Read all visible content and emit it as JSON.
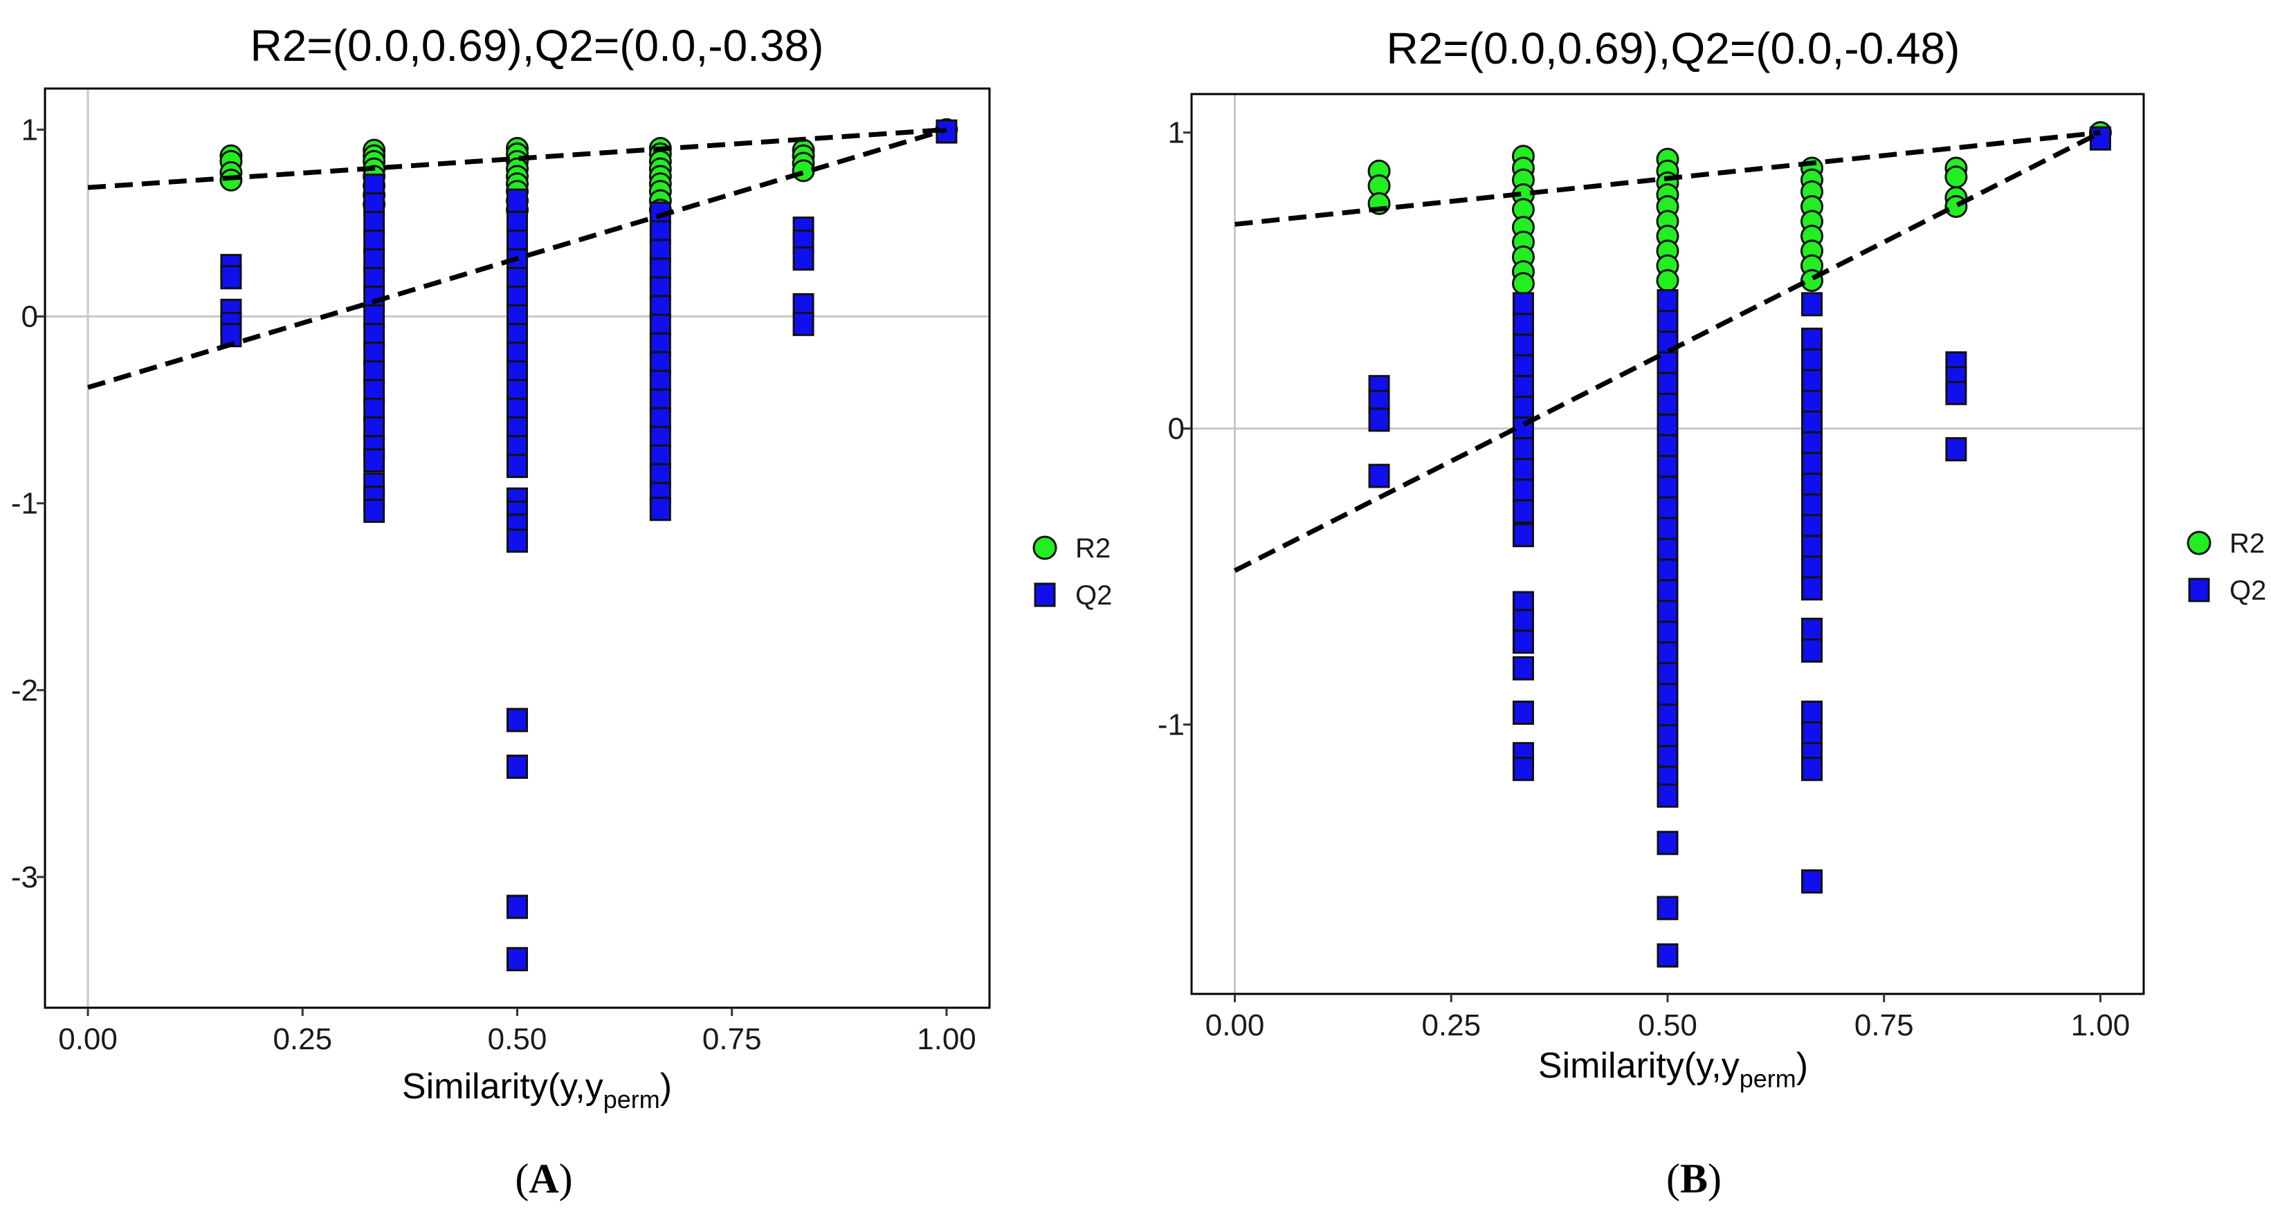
{
  "chart_data": [
    {
      "type": "scatter",
      "panel_label": "A",
      "title": "R2=(0.0,0.69),Q2=(0.0,-0.38)",
      "xlabel_main": "Similarity(y,y",
      "xlabel_sub": "perm",
      "xlabel_close": ")",
      "xlim": [
        -0.05,
        1.05
      ],
      "ylim": [
        -3.7,
        1.22
      ],
      "xticks": [
        0.0,
        0.25,
        0.5,
        0.75,
        1.0
      ],
      "xtick_labels": [
        "0.00",
        "0.25",
        "0.50",
        "0.75",
        "1.00"
      ],
      "yticks": [
        1,
        0,
        -1,
        -2,
        -3
      ],
      "ytick_labels": [
        "1",
        "0",
        "-1",
        "-2",
        "-3"
      ],
      "legend": [
        {
          "name": "R2",
          "shape": "circle",
          "color": "#22ee22"
        },
        {
          "name": "Q2",
          "shape": "square",
          "color": "#1010ee"
        }
      ],
      "fit_lines": [
        {
          "name": "R2",
          "x": [
            0.0,
            1.0
          ],
          "y": [
            0.69,
            1.0
          ]
        },
        {
          "name": "Q2",
          "x": [
            0.0,
            1.0
          ],
          "y": [
            -0.38,
            1.0
          ]
        }
      ],
      "series": [
        {
          "name": "R2",
          "points": [
            [
              0.1667,
              0.86
            ],
            [
              0.1667,
              0.83
            ],
            [
              0.1667,
              0.77
            ],
            [
              0.1667,
              0.73
            ],
            [
              0.3333,
              0.89
            ],
            [
              0.3333,
              0.86
            ],
            [
              0.3333,
              0.83
            ],
            [
              0.3333,
              0.79
            ],
            [
              0.3333,
              0.75
            ],
            [
              0.3333,
              0.7
            ],
            [
              0.3333,
              0.65
            ],
            [
              0.3333,
              0.6
            ],
            [
              0.5,
              0.9
            ],
            [
              0.5,
              0.87
            ],
            [
              0.5,
              0.83
            ],
            [
              0.5,
              0.79
            ],
            [
              0.5,
              0.75
            ],
            [
              0.5,
              0.71
            ],
            [
              0.5,
              0.67
            ],
            [
              0.5,
              0.62
            ],
            [
              0.5,
              0.57
            ],
            [
              0.6667,
              0.9
            ],
            [
              0.6667,
              0.87
            ],
            [
              0.6667,
              0.83
            ],
            [
              0.6667,
              0.79
            ],
            [
              0.6667,
              0.75
            ],
            [
              0.6667,
              0.71
            ],
            [
              0.6667,
              0.67
            ],
            [
              0.6667,
              0.62
            ],
            [
              0.6667,
              0.57
            ],
            [
              0.8333,
              0.89
            ],
            [
              0.8333,
              0.86
            ],
            [
              0.8333,
              0.82
            ],
            [
              0.8333,
              0.78
            ],
            [
              1.0,
              1.0
            ]
          ]
        },
        {
          "name": "Q2",
          "points": [
            [
              0.1667,
              0.27
            ],
            [
              0.1667,
              0.21
            ],
            [
              0.1667,
              0.03
            ],
            [
              0.1667,
              -0.04
            ],
            [
              0.1667,
              -0.1
            ],
            [
              0.3333,
              0.7
            ],
            [
              0.3333,
              0.6
            ],
            [
              0.3333,
              0.5
            ],
            [
              0.3333,
              0.4
            ],
            [
              0.3333,
              0.3
            ],
            [
              0.3333,
              0.2
            ],
            [
              0.3333,
              0.1
            ],
            [
              0.3333,
              0.0
            ],
            [
              0.3333,
              -0.1
            ],
            [
              0.3333,
              -0.2
            ],
            [
              0.3333,
              -0.3
            ],
            [
              0.3333,
              -0.4
            ],
            [
              0.3333,
              -0.5
            ],
            [
              0.3333,
              -0.6
            ],
            [
              0.3333,
              -0.7
            ],
            [
              0.3333,
              -0.77
            ],
            [
              0.3333,
              -0.9
            ],
            [
              0.3333,
              -0.97
            ],
            [
              0.3333,
              -1.04
            ],
            [
              0.5,
              0.62
            ],
            [
              0.5,
              0.5
            ],
            [
              0.5,
              0.4
            ],
            [
              0.5,
              0.3
            ],
            [
              0.5,
              0.2
            ],
            [
              0.5,
              0.1
            ],
            [
              0.5,
              0.0
            ],
            [
              0.5,
              -0.1
            ],
            [
              0.5,
              -0.2
            ],
            [
              0.5,
              -0.3
            ],
            [
              0.5,
              -0.4
            ],
            [
              0.5,
              -0.5
            ],
            [
              0.5,
              -0.6
            ],
            [
              0.5,
              -0.7
            ],
            [
              0.5,
              -0.8
            ],
            [
              0.5,
              -0.98
            ],
            [
              0.5,
              -1.05
            ],
            [
              0.5,
              -1.12
            ],
            [
              0.5,
              -1.2
            ],
            [
              0.5,
              -2.16
            ],
            [
              0.5,
              -2.41
            ],
            [
              0.5,
              -3.16
            ],
            [
              0.5,
              -3.44
            ],
            [
              0.6667,
              0.55
            ],
            [
              0.6667,
              0.45
            ],
            [
              0.6667,
              0.35
            ],
            [
              0.6667,
              0.25
            ],
            [
              0.6667,
              0.15
            ],
            [
              0.6667,
              0.05
            ],
            [
              0.6667,
              -0.05
            ],
            [
              0.6667,
              -0.15
            ],
            [
              0.6667,
              -0.25
            ],
            [
              0.6667,
              -0.35
            ],
            [
              0.6667,
              -0.45
            ],
            [
              0.6667,
              -0.55
            ],
            [
              0.6667,
              -0.65
            ],
            [
              0.6667,
              -0.75
            ],
            [
              0.6667,
              -0.85
            ],
            [
              0.6667,
              -0.95
            ],
            [
              0.6667,
              -1.03
            ],
            [
              0.8333,
              0.47
            ],
            [
              0.8333,
              0.4
            ],
            [
              0.8333,
              0.31
            ],
            [
              0.8333,
              0.06
            ],
            [
              0.8333,
              -0.04
            ],
            [
              1.0,
              0.99
            ]
          ]
        }
      ]
    },
    {
      "type": "scatter",
      "panel_label": "B",
      "title": "R2=(0.0,0.69),Q2=(0.0,-0.48)",
      "xlabel_main": "Similarity(y,y",
      "xlabel_sub": "perm",
      "xlabel_close": ")",
      "xlim": [
        -0.05,
        1.05
      ],
      "ylim": [
        -1.91,
        1.13
      ],
      "xticks": [
        0.0,
        0.25,
        0.5,
        0.75,
        1.0
      ],
      "xtick_labels": [
        "0.00",
        "0.25",
        "0.50",
        "0.75",
        "1.00"
      ],
      "yticks": [
        1,
        0,
        -1
      ],
      "ytick_labels": [
        "1",
        "0",
        "-1"
      ],
      "legend": [
        {
          "name": "R2",
          "shape": "circle",
          "color": "#22ee22"
        },
        {
          "name": "Q2",
          "shape": "square",
          "color": "#1010ee"
        }
      ],
      "fit_lines": [
        {
          "name": "R2",
          "x": [
            0.0,
            1.0
          ],
          "y": [
            0.69,
            1.0
          ]
        },
        {
          "name": "Q2",
          "x": [
            0.0,
            1.0
          ],
          "y": [
            -0.48,
            1.0
          ]
        }
      ],
      "series": [
        {
          "name": "R2",
          "points": [
            [
              0.1667,
              0.87
            ],
            [
              0.1667,
              0.82
            ],
            [
              0.1667,
              0.76
            ],
            [
              0.3333,
              0.92
            ],
            [
              0.3333,
              0.88
            ],
            [
              0.3333,
              0.84
            ],
            [
              0.3333,
              0.79
            ],
            [
              0.3333,
              0.74
            ],
            [
              0.3333,
              0.68
            ],
            [
              0.3333,
              0.63
            ],
            [
              0.3333,
              0.58
            ],
            [
              0.3333,
              0.53
            ],
            [
              0.3333,
              0.49
            ],
            [
              0.5,
              0.91
            ],
            [
              0.5,
              0.87
            ],
            [
              0.5,
              0.83
            ],
            [
              0.5,
              0.79
            ],
            [
              0.5,
              0.75
            ],
            [
              0.5,
              0.7
            ],
            [
              0.5,
              0.65
            ],
            [
              0.5,
              0.6
            ],
            [
              0.5,
              0.55
            ],
            [
              0.5,
              0.5
            ],
            [
              0.6667,
              0.88
            ],
            [
              0.6667,
              0.84
            ],
            [
              0.6667,
              0.8
            ],
            [
              0.6667,
              0.75
            ],
            [
              0.6667,
              0.7
            ],
            [
              0.6667,
              0.65
            ],
            [
              0.6667,
              0.6
            ],
            [
              0.6667,
              0.55
            ],
            [
              0.6667,
              0.5
            ],
            [
              0.8333,
              0.88
            ],
            [
              0.8333,
              0.85
            ],
            [
              0.8333,
              0.78
            ],
            [
              0.8333,
              0.75
            ],
            [
              1.0,
              1.0
            ]
          ]
        },
        {
          "name": "Q2",
          "points": [
            [
              0.1667,
              0.14
            ],
            [
              0.1667,
              0.09
            ],
            [
              0.1667,
              0.03
            ],
            [
              0.1667,
              -0.16
            ],
            [
              0.3333,
              0.42
            ],
            [
              0.3333,
              0.35
            ],
            [
              0.3333,
              0.28
            ],
            [
              0.3333,
              0.21
            ],
            [
              0.3333,
              0.14
            ],
            [
              0.3333,
              0.07
            ],
            [
              0.3333,
              0.0
            ],
            [
              0.3333,
              -0.07
            ],
            [
              0.3333,
              -0.14
            ],
            [
              0.3333,
              -0.21
            ],
            [
              0.3333,
              -0.28
            ],
            [
              0.3333,
              -0.36
            ],
            [
              0.3333,
              -0.59
            ],
            [
              0.3333,
              -0.65
            ],
            [
              0.3333,
              -0.72
            ],
            [
              0.3333,
              -0.81
            ],
            [
              0.3333,
              -0.96
            ],
            [
              0.3333,
              -1.1
            ],
            [
              0.3333,
              -1.15
            ],
            [
              0.5,
              0.43
            ],
            [
              0.5,
              0.36
            ],
            [
              0.5,
              0.29
            ],
            [
              0.5,
              0.22
            ],
            [
              0.5,
              0.15
            ],
            [
              0.5,
              0.08
            ],
            [
              0.5,
              0.01
            ],
            [
              0.5,
              -0.06
            ],
            [
              0.5,
              -0.13
            ],
            [
              0.5,
              -0.2
            ],
            [
              0.5,
              -0.27
            ],
            [
              0.5,
              -0.34
            ],
            [
              0.5,
              -0.41
            ],
            [
              0.5,
              -0.48
            ],
            [
              0.5,
              -0.55
            ],
            [
              0.5,
              -0.62
            ],
            [
              0.5,
              -0.69
            ],
            [
              0.5,
              -0.76
            ],
            [
              0.5,
              -0.83
            ],
            [
              0.5,
              -0.9
            ],
            [
              0.5,
              -0.97
            ],
            [
              0.5,
              -1.04
            ],
            [
              0.5,
              -1.11
            ],
            [
              0.5,
              -1.18
            ],
            [
              0.5,
              -1.24
            ],
            [
              0.5,
              -1.4
            ],
            [
              0.5,
              -1.62
            ],
            [
              0.5,
              -1.78
            ],
            [
              0.6667,
              0.42
            ],
            [
              0.6667,
              0.3
            ],
            [
              0.6667,
              0.23
            ],
            [
              0.6667,
              0.16
            ],
            [
              0.6667,
              0.09
            ],
            [
              0.6667,
              0.02
            ],
            [
              0.6667,
              -0.05
            ],
            [
              0.6667,
              -0.12
            ],
            [
              0.6667,
              -0.19
            ],
            [
              0.6667,
              -0.26
            ],
            [
              0.6667,
              -0.33
            ],
            [
              0.6667,
              -0.4
            ],
            [
              0.6667,
              -0.47
            ],
            [
              0.6667,
              -0.54
            ],
            [
              0.6667,
              -0.68
            ],
            [
              0.6667,
              -0.75
            ],
            [
              0.6667,
              -0.96
            ],
            [
              0.6667,
              -1.03
            ],
            [
              0.6667,
              -1.1
            ],
            [
              0.6667,
              -1.15
            ],
            [
              0.6667,
              -1.53
            ],
            [
              0.8333,
              0.22
            ],
            [
              0.8333,
              0.17
            ],
            [
              0.8333,
              0.12
            ],
            [
              0.8333,
              -0.07
            ],
            [
              1.0,
              0.98
            ]
          ]
        }
      ]
    }
  ]
}
